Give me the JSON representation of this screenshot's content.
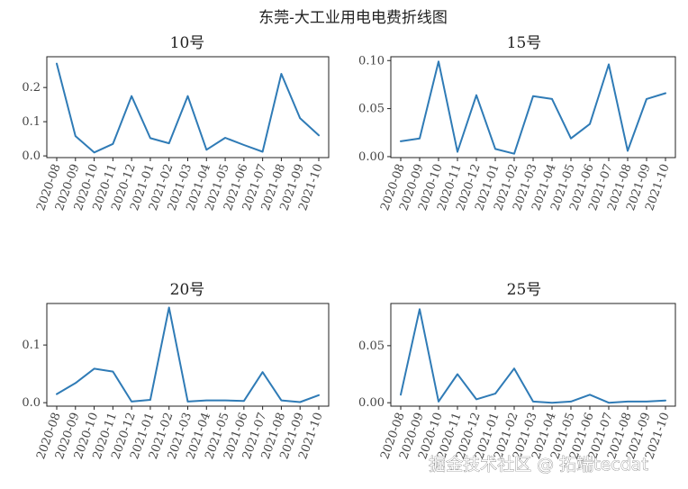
{
  "figure": {
    "suptitle": "东莞-大工业用电电费折线图",
    "watermark": "掘金技术社区 @ 拓端tecdat",
    "line_color": "#2f7bb6"
  },
  "chart_data": [
    {
      "type": "line",
      "title": "10号",
      "categories": [
        "2020-08",
        "2020-09",
        "2020-10",
        "2020-11",
        "2020-12",
        "2021-01",
        "2021-02",
        "2021-03",
        "2021-04",
        "2021-05",
        "2021-06",
        "2021-07",
        "2021-08",
        "2021-09",
        "2021-10"
      ],
      "values": [
        0.27,
        0.058,
        0.01,
        0.035,
        0.175,
        0.052,
        0.037,
        0.175,
        0.018,
        0.053,
        0.032,
        0.012,
        0.24,
        0.11,
        0.06
      ],
      "ylim": [
        -0.005,
        0.29
      ],
      "yticks": [
        0.0,
        0.1,
        0.2
      ],
      "ytick_labels": [
        "0.0",
        "0.1",
        "0.2"
      ],
      "grid": false
    },
    {
      "type": "line",
      "title": "15号",
      "categories": [
        "2020-08",
        "2020-09",
        "2020-10",
        "2020-11",
        "2020-12",
        "2021-01",
        "2021-02",
        "2021-03",
        "2021-04",
        "2021-05",
        "2021-06",
        "2021-07",
        "2021-08",
        "2021-09",
        "2021-10"
      ],
      "values": [
        0.016,
        0.019,
        0.099,
        0.005,
        0.064,
        0.008,
        0.003,
        0.063,
        0.06,
        0.019,
        0.034,
        0.096,
        0.006,
        0.06,
        0.066
      ],
      "ylim": [
        -0.001,
        0.104
      ],
      "yticks": [
        0.0,
        0.05,
        0.1
      ],
      "ytick_labels": [
        "0.00",
        "0.05",
        "0.10"
      ],
      "grid": false
    },
    {
      "type": "line",
      "title": "20号",
      "categories": [
        "2020-08",
        "2020-09",
        "2020-10",
        "2020-11",
        "2020-12",
        "2021-01",
        "2021-02",
        "2021-03",
        "2021-04",
        "2021-05",
        "2021-06",
        "2021-07",
        "2021-08",
        "2021-09",
        "2021-10"
      ],
      "values": [
        0.015,
        0.034,
        0.059,
        0.054,
        0.002,
        0.005,
        0.165,
        0.002,
        0.004,
        0.004,
        0.003,
        0.053,
        0.004,
        0.001,
        0.013
      ],
      "ylim": [
        -0.006,
        0.172
      ],
      "yticks": [
        0.0,
        0.1
      ],
      "ytick_labels": [
        "0.0",
        "0.1"
      ],
      "grid": false
    },
    {
      "type": "line",
      "title": "25号",
      "categories": [
        "2020-08",
        "2020-09",
        "2020-10",
        "2020-11",
        "2020-12",
        "2021-01",
        "2021-02",
        "2021-03",
        "2021-04",
        "2021-05",
        "2021-06",
        "2021-07",
        "2021-08",
        "2021-09",
        "2021-10"
      ],
      "values": [
        0.007,
        0.082,
        0.001,
        0.025,
        0.003,
        0.008,
        0.03,
        0.001,
        0.0,
        0.001,
        0.007,
        0.0,
        0.001,
        0.001,
        0.002
      ],
      "ylim": [
        -0.003,
        0.087
      ],
      "yticks": [
        0.0,
        0.05
      ],
      "ytick_labels": [
        "0.00",
        "0.05"
      ],
      "grid": false
    }
  ]
}
